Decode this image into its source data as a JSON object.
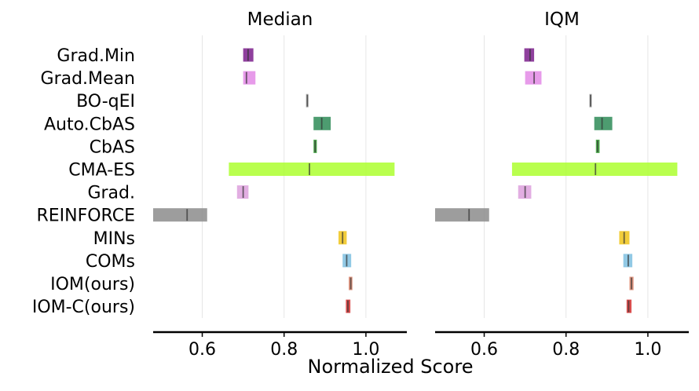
{
  "chart_data": {
    "type": "interval",
    "xlabel": "Normalized Score",
    "xlim": [
      0.48,
      1.1
    ],
    "xticks": [
      "0.6",
      "0.8",
      "1.0"
    ],
    "xtick_values": [
      0.6,
      0.8,
      1.0
    ],
    "grid": "vertical",
    "methods": [
      "Grad.Min",
      "Grad.Mean",
      "BO-qEI",
      "Auto.CbAS",
      "CbAS",
      "CMA-ES",
      "Grad.",
      "REINFORCE",
      "MINs",
      "COMs",
      "IOM(ours)",
      "IOM-C(ours)"
    ],
    "colors": [
      "#7b1f8c",
      "#e38ae6",
      "#9e9e9e",
      "#2e8b57",
      "#2f9e2f",
      "#adff2f",
      "#dda0dd",
      "#8c8c8c",
      "#f0c419",
      "#7ec0e0",
      "#d9826a",
      "#d32f2f"
    ],
    "panels": [
      {
        "title": "Median",
        "intervals": [
          {
            "low": 0.7,
            "high": 0.725,
            "point": 0.712
          },
          {
            "low": 0.7,
            "high": 0.73,
            "point": 0.708
          },
          {
            "low": 0.855,
            "high": 0.858,
            "point": 0.857
          },
          {
            "low": 0.872,
            "high": 0.914,
            "point": 0.892
          },
          {
            "low": 0.872,
            "high": 0.88,
            "point": 0.876
          },
          {
            "low": 0.665,
            "high": 1.07,
            "point": 0.862
          },
          {
            "low": 0.685,
            "high": 0.713,
            "point": 0.7
          },
          {
            "low": 0.48,
            "high": 0.612,
            "point": 0.563
          },
          {
            "low": 0.933,
            "high": 0.953,
            "point": 0.943
          },
          {
            "low": 0.943,
            "high": 0.964,
            "point": 0.953
          },
          {
            "low": 0.958,
            "high": 0.967,
            "point": 0.963
          },
          {
            "low": 0.951,
            "high": 0.962,
            "point": 0.956
          }
        ]
      },
      {
        "title": "IQM",
        "intervals": [
          {
            "low": 0.698,
            "high": 0.722,
            "point": 0.712
          },
          {
            "low": 0.7,
            "high": 0.74,
            "point": 0.722
          },
          {
            "low": 0.858,
            "high": 0.862,
            "point": 0.86
          },
          {
            "low": 0.869,
            "high": 0.913,
            "point": 0.888
          },
          {
            "low": 0.873,
            "high": 0.882,
            "point": 0.877
          },
          {
            "low": 0.668,
            "high": 1.072,
            "point": 0.872
          },
          {
            "low": 0.683,
            "high": 0.715,
            "point": 0.7
          },
          {
            "low": 0.48,
            "high": 0.612,
            "point": 0.563
          },
          {
            "low": 0.93,
            "high": 0.955,
            "point": 0.942
          },
          {
            "low": 0.94,
            "high": 0.962,
            "point": 0.952
          },
          {
            "low": 0.955,
            "high": 0.965,
            "point": 0.96
          },
          {
            "low": 0.948,
            "high": 0.96,
            "point": 0.953
          }
        ]
      }
    ]
  }
}
